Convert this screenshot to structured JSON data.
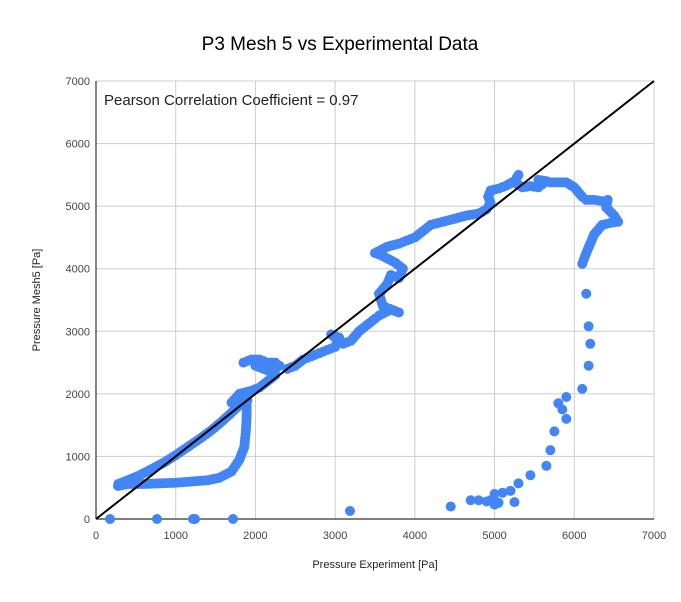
{
  "chart_data": {
    "type": "scatter",
    "title": "P3 Mesh 5 vs Experimental Data",
    "xlabel": "Pressure Experiment [Pa]",
    "ylabel": "Pressure Mesh5 [Pa]",
    "xlim": [
      0,
      7000
    ],
    "ylim": [
      0,
      7000
    ],
    "xticks": [
      "0",
      "1000",
      "2000",
      "3000",
      "4000",
      "5000",
      "6000",
      "7000"
    ],
    "yticks": [
      "0",
      "1000",
      "2000",
      "3000",
      "4000",
      "5000",
      "6000",
      "7000"
    ],
    "grid": true,
    "annotation": "Pearson Correlation Coefficient = 0.97",
    "reference_line": {
      "name": "y = x",
      "from": [
        0,
        0
      ],
      "to": [
        7000,
        7000
      ],
      "color": "#000000"
    },
    "series": [
      {
        "name": "Pressure Mesh5",
        "color": "#4285f4",
        "points": [
          [
            176,
            0
          ],
          [
            765,
            0
          ],
          [
            1217,
            0
          ],
          [
            1242,
            0
          ],
          [
            1719,
            0
          ],
          [
            3186,
            128
          ],
          [
            276,
            527
          ],
          [
            400,
            560
          ],
          [
            600,
            560
          ],
          [
            800,
            570
          ],
          [
            1000,
            580
          ],
          [
            1200,
            600
          ],
          [
            1400,
            620
          ],
          [
            1550,
            660
          ],
          [
            1700,
            760
          ],
          [
            1800,
            950
          ],
          [
            1860,
            1150
          ],
          [
            1880,
            1400
          ],
          [
            1890,
            1650
          ],
          [
            1890,
            1850
          ],
          [
            280,
            560
          ],
          [
            400,
            620
          ],
          [
            550,
            700
          ],
          [
            700,
            800
          ],
          [
            850,
            900
          ],
          [
            1000,
            1020
          ],
          [
            1150,
            1150
          ],
          [
            1300,
            1280
          ],
          [
            1450,
            1420
          ],
          [
            1580,
            1560
          ],
          [
            1700,
            1700
          ],
          [
            1800,
            1820
          ],
          [
            1900,
            1900
          ],
          [
            1750,
            1850
          ],
          [
            1700,
            1860
          ],
          [
            1800,
            2000
          ],
          [
            1950,
            2050
          ],
          [
            2050,
            2100
          ],
          [
            2150,
            2200
          ],
          [
            2250,
            2300
          ],
          [
            1850,
            2500
          ],
          [
            1950,
            2550
          ],
          [
            2050,
            2550
          ],
          [
            2150,
            2500
          ],
          [
            2250,
            2500
          ],
          [
            2300,
            2450
          ],
          [
            2200,
            2350
          ],
          [
            2100,
            2400
          ],
          [
            2000,
            2450
          ],
          [
            2400,
            2400
          ],
          [
            2500,
            2450
          ],
          [
            2600,
            2550
          ],
          [
            2700,
            2600
          ],
          [
            2800,
            2650
          ],
          [
            2900,
            2700
          ],
          [
            3000,
            2750
          ],
          [
            3050,
            2900
          ],
          [
            2950,
            2950
          ],
          [
            3100,
            2800
          ],
          [
            3200,
            2850
          ],
          [
            3300,
            3000
          ],
          [
            3400,
            3100
          ],
          [
            3500,
            3200
          ],
          [
            3550,
            3250
          ],
          [
            3700,
            3350
          ],
          [
            3800,
            3300
          ],
          [
            3600,
            3400
          ],
          [
            3550,
            3600
          ],
          [
            3650,
            3750
          ],
          [
            3700,
            3900
          ],
          [
            3800,
            3850
          ],
          [
            3850,
            4000
          ],
          [
            3750,
            4100
          ],
          [
            3600,
            4200
          ],
          [
            3500,
            4250
          ],
          [
            3650,
            4350
          ],
          [
            3800,
            4400
          ],
          [
            3900,
            4450
          ],
          [
            4000,
            4500
          ],
          [
            4100,
            4600
          ],
          [
            4200,
            4700
          ],
          [
            4350,
            4750
          ],
          [
            4500,
            4800
          ],
          [
            4650,
            4850
          ],
          [
            4800,
            4880
          ],
          [
            4900,
            4950
          ],
          [
            4950,
            5050
          ],
          [
            4920,
            5150
          ],
          [
            4950,
            5250
          ],
          [
            5050,
            5280
          ],
          [
            5150,
            5330
          ],
          [
            5250,
            5400
          ],
          [
            5300,
            5500
          ],
          [
            5250,
            5380
          ],
          [
            5350,
            5300
          ],
          [
            5450,
            5320
          ],
          [
            5550,
            5300
          ],
          [
            5600,
            5350
          ],
          [
            5650,
            5400
          ],
          [
            5550,
            5420
          ],
          [
            5700,
            5380
          ],
          [
            5900,
            5380
          ],
          [
            6000,
            5300
          ],
          [
            6100,
            5150
          ],
          [
            6150,
            5100
          ],
          [
            6250,
            5100
          ],
          [
            6350,
            5080
          ],
          [
            6420,
            5100
          ],
          [
            6400,
            4980
          ],
          [
            6500,
            4850
          ],
          [
            6550,
            4750
          ],
          [
            6450,
            4730
          ],
          [
            6350,
            4700
          ],
          [
            6250,
            4550
          ],
          [
            6150,
            4250
          ],
          [
            6100,
            4080
          ],
          [
            6150,
            3600
          ],
          [
            6180,
            3080
          ],
          [
            6200,
            2800
          ],
          [
            6180,
            2450
          ],
          [
            6100,
            2080
          ],
          [
            5900,
            1950
          ],
          [
            5800,
            1850
          ],
          [
            5850,
            1750
          ],
          [
            5900,
            1600
          ],
          [
            5750,
            1400
          ],
          [
            5700,
            1100
          ],
          [
            5650,
            850
          ],
          [
            5450,
            700
          ],
          [
            5300,
            570
          ],
          [
            5200,
            450
          ],
          [
            5100,
            420
          ],
          [
            5000,
            400
          ],
          [
            4950,
            300
          ],
          [
            4900,
            280
          ],
          [
            4800,
            300
          ],
          [
            4700,
            300
          ],
          [
            4450,
            200
          ],
          [
            5250,
            270
          ],
          [
            5050,
            260
          ],
          [
            5000,
            230
          ]
        ]
      }
    ]
  }
}
